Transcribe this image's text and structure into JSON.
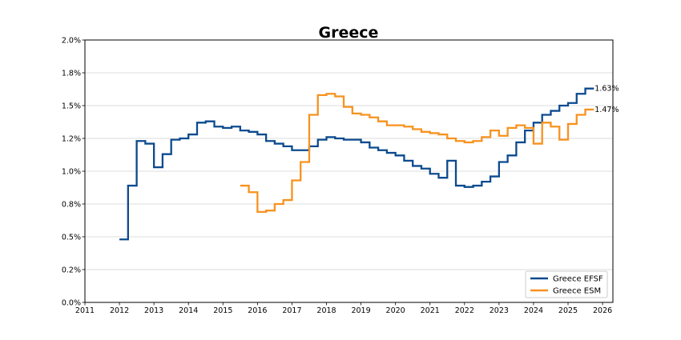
{
  "chart_data": {
    "type": "line",
    "title": "Greece",
    "xlabel": "",
    "ylabel": "",
    "xlim": [
      2011,
      2026.3
    ],
    "ylim": [
      0,
      2.0
    ],
    "x_ticks": [
      2011,
      2012,
      2013,
      2014,
      2015,
      2016,
      2017,
      2018,
      2019,
      2020,
      2021,
      2022,
      2023,
      2024,
      2025,
      2026
    ],
    "y_ticks": [
      0,
      0.25,
      0.5,
      0.75,
      1.0,
      1.25,
      1.5,
      1.75,
      2.0
    ],
    "y_tick_labels": [
      "0.0%",
      "0.2%",
      "0.5%",
      "0.8%",
      "1.0%",
      "1.2%",
      "1.5%",
      "1.8%",
      "2.0%"
    ],
    "grid": "horizontal",
    "legend_position": "bottom-right",
    "step_style": "post",
    "series": [
      {
        "name": "Greece EFSF",
        "color": "#0b4a8e",
        "end_label": "1.63%",
        "points": [
          [
            2012.0,
            0.48
          ],
          [
            2012.25,
            0.89
          ],
          [
            2012.5,
            1.23
          ],
          [
            2012.75,
            1.21
          ],
          [
            2013.0,
            1.03
          ],
          [
            2013.25,
            1.13
          ],
          [
            2013.5,
            1.24
          ],
          [
            2013.75,
            1.25
          ],
          [
            2014.0,
            1.28
          ],
          [
            2014.25,
            1.37
          ],
          [
            2014.5,
            1.38
          ],
          [
            2014.75,
            1.34
          ],
          [
            2015.0,
            1.33
          ],
          [
            2015.25,
            1.34
          ],
          [
            2015.5,
            1.31
          ],
          [
            2015.75,
            1.3
          ],
          [
            2016.0,
            1.28
          ],
          [
            2016.25,
            1.23
          ],
          [
            2016.5,
            1.21
          ],
          [
            2016.75,
            1.19
          ],
          [
            2017.0,
            1.16
          ],
          [
            2017.25,
            1.16
          ],
          [
            2017.5,
            1.19
          ],
          [
            2017.75,
            1.24
          ],
          [
            2018.0,
            1.26
          ],
          [
            2018.25,
            1.25
          ],
          [
            2018.5,
            1.24
          ],
          [
            2018.75,
            1.24
          ],
          [
            2019.0,
            1.22
          ],
          [
            2019.25,
            1.18
          ],
          [
            2019.5,
            1.16
          ],
          [
            2019.75,
            1.14
          ],
          [
            2020.0,
            1.12
          ],
          [
            2020.25,
            1.08
          ],
          [
            2020.5,
            1.04
          ],
          [
            2020.75,
            1.02
          ],
          [
            2021.0,
            0.98
          ],
          [
            2021.25,
            0.95
          ],
          [
            2021.5,
            1.08
          ],
          [
            2021.75,
            0.89
          ],
          [
            2022.0,
            0.88
          ],
          [
            2022.25,
            0.89
          ],
          [
            2022.5,
            0.92
          ],
          [
            2022.75,
            0.96
          ],
          [
            2023.0,
            1.07
          ],
          [
            2023.25,
            1.12
          ],
          [
            2023.5,
            1.22
          ],
          [
            2023.75,
            1.31
          ],
          [
            2024.0,
            1.37
          ],
          [
            2024.25,
            1.43
          ],
          [
            2024.5,
            1.46
          ],
          [
            2024.75,
            1.5
          ],
          [
            2025.0,
            1.52
          ],
          [
            2025.25,
            1.59
          ],
          [
            2025.5,
            1.63
          ],
          [
            2025.75,
            1.63
          ]
        ]
      },
      {
        "name": "Greece ESM",
        "color": "#f7921e",
        "end_label": "1.47%",
        "points": [
          [
            2015.5,
            0.89
          ],
          [
            2015.75,
            0.84
          ],
          [
            2016.0,
            0.69
          ],
          [
            2016.25,
            0.7
          ],
          [
            2016.5,
            0.75
          ],
          [
            2016.75,
            0.78
          ],
          [
            2017.0,
            0.93
          ],
          [
            2017.25,
            1.07
          ],
          [
            2017.5,
            1.43
          ],
          [
            2017.75,
            1.58
          ],
          [
            2018.0,
            1.59
          ],
          [
            2018.25,
            1.57
          ],
          [
            2018.5,
            1.49
          ],
          [
            2018.75,
            1.44
          ],
          [
            2019.0,
            1.43
          ],
          [
            2019.25,
            1.41
          ],
          [
            2019.5,
            1.38
          ],
          [
            2019.75,
            1.35
          ],
          [
            2020.0,
            1.35
          ],
          [
            2020.25,
            1.34
          ],
          [
            2020.5,
            1.32
          ],
          [
            2020.75,
            1.3
          ],
          [
            2021.0,
            1.29
          ],
          [
            2021.25,
            1.28
          ],
          [
            2021.5,
            1.25
          ],
          [
            2021.75,
            1.23
          ],
          [
            2022.0,
            1.22
          ],
          [
            2022.25,
            1.23
          ],
          [
            2022.5,
            1.26
          ],
          [
            2022.75,
            1.31
          ],
          [
            2023.0,
            1.27
          ],
          [
            2023.25,
            1.33
          ],
          [
            2023.5,
            1.35
          ],
          [
            2023.75,
            1.33
          ],
          [
            2024.0,
            1.21
          ],
          [
            2024.25,
            1.37
          ],
          [
            2024.5,
            1.34
          ],
          [
            2024.75,
            1.24
          ],
          [
            2025.0,
            1.36
          ],
          [
            2025.25,
            1.43
          ],
          [
            2025.5,
            1.47
          ],
          [
            2025.75,
            1.47
          ]
        ]
      }
    ]
  }
}
